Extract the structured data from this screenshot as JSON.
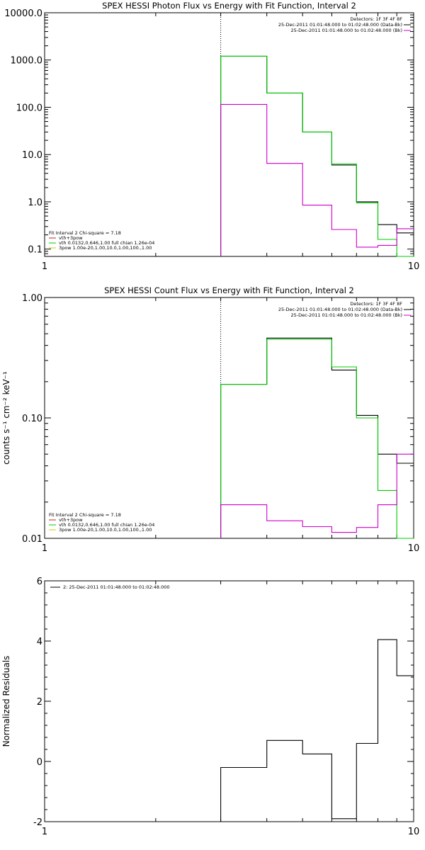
{
  "chart_data": [
    {
      "type": "line",
      "title": "SPEX HESSI Photon Flux vs Energy with Fit Function, Interval 2",
      "xlabel": "",
      "ylabel": "",
      "xscale": "log",
      "yscale": "log",
      "xlim": [
        1,
        10
      ],
      "ylim": [
        0.07,
        10000
      ],
      "x_ticks": [
        "1",
        "10"
      ],
      "y_ticks": [
        {
          "v": 0.1,
          "label": "0.1"
        },
        {
          "v": 1,
          "label": "1.0"
        },
        {
          "v": 10,
          "label": "10.0"
        },
        {
          "v": 100,
          "label": "100.0"
        },
        {
          "v": 1000,
          "label": "1000.0"
        },
        {
          "v": 10000,
          "label": "10000.0"
        }
      ],
      "marker_x": 3,
      "legend_top": {
        "lines": [
          {
            "text": "Detectors: 1F 3F 4F 8F",
            "color": ""
          },
          {
            "text": "25-Dec-2011 01:01:48.000 to 01:02:48.000 (Data-Bk)",
            "color": "#000000"
          },
          {
            "text": "25-Dec-2011 01:01:48.000 to 01:02:48.000 (Bk)",
            "color": "#cc00cc"
          }
        ]
      },
      "legend_bottom": {
        "lines": [
          {
            "text": "Fit Interval 2   Chi-square = 7.18",
            "color": ""
          },
          {
            "text": "vth+3pow",
            "color": "#cc2222"
          },
          {
            "text": "vth 0.0132,0.646,1.00  full chian 1.26e-04",
            "color": "#00cc00"
          },
          {
            "text": "3pow 1.00e-20,1.00,10.0,1.00,100.,1.00",
            "color": "#cccc00"
          }
        ]
      },
      "series": [
        {
          "color": "#000000",
          "values": [
            [
              3,
              1200
            ],
            [
              4,
              200
            ],
            [
              5,
              30
            ],
            [
              6,
              6
            ],
            [
              7,
              1.0
            ],
            [
              8,
              0.33
            ],
            [
              9,
              0.22
            ],
            [
              10,
              0.22
            ]
          ]
        },
        {
          "color": "#00cc00",
          "values": [
            [
              3,
              1200
            ],
            [
              4,
              200
            ],
            [
              5,
              30
            ],
            [
              6,
              6.3
            ],
            [
              7,
              0.95
            ],
            [
              8,
              0.16
            ],
            [
              9,
              0.065
            ],
            [
              10,
              0.065
            ]
          ]
        },
        {
          "color": "#cc00cc",
          "values": [
            [
              3,
              115
            ],
            [
              4,
              6.5
            ],
            [
              5,
              0.85
            ],
            [
              6,
              0.26
            ],
            [
              7,
              0.11
            ],
            [
              8,
              0.12
            ],
            [
              9,
              0.27
            ],
            [
              10,
              0.27
            ]
          ]
        }
      ]
    },
    {
      "type": "line",
      "title": "SPEX HESSI Count Flux vs Energy with Fit Function, Interval 2",
      "xlabel": "",
      "ylabel": "counts s⁻¹ cm⁻² keV⁻¹",
      "xscale": "log",
      "yscale": "log",
      "xlim": [
        1,
        10
      ],
      "ylim": [
        0.01,
        1.0
      ],
      "x_ticks": [
        "1",
        "10"
      ],
      "y_ticks": [
        {
          "v": 0.01,
          "label": "0.01"
        },
        {
          "v": 0.1,
          "label": "0.10"
        },
        {
          "v": 1,
          "label": "1.00"
        }
      ],
      "marker_x": 3,
      "legend_top": {
        "lines": [
          {
            "text": "Detectors: 1F 3F 4F 8F",
            "color": ""
          },
          {
            "text": "25-Dec-2011 01:01:48.000 to 01:02:48.000 (Data-Bk)",
            "color": "#000000"
          },
          {
            "text": "25-Dec-2011 01:01:48.000 to 01:02:48.000 (Bk)",
            "color": "#cc00cc"
          }
        ]
      },
      "legend_bottom": {
        "lines": [
          {
            "text": "Fit Interval 2   Chi-square = 7.18",
            "color": ""
          },
          {
            "text": "vth+3pow",
            "color": "#cc2222"
          },
          {
            "text": "vth 0.0132,0.646,1.00  full chian 1.26e-04",
            "color": "#00cc00"
          },
          {
            "text": "3pow 1.00e-20,1.00,10.0,1.00,100.,1.00",
            "color": "#cccc00"
          }
        ]
      },
      "series": [
        {
          "color": "#000000",
          "values": [
            [
              3,
              0.19
            ],
            [
              4,
              0.46
            ],
            [
              5,
              0.46
            ],
            [
              6,
              0.25
            ],
            [
              7,
              0.105
            ],
            [
              8,
              0.05
            ],
            [
              9,
              0.042
            ],
            [
              10,
              0.042
            ]
          ]
        },
        {
          "color": "#00cc00",
          "values": [
            [
              3,
              0.19
            ],
            [
              4,
              0.45
            ],
            [
              5,
              0.45
            ],
            [
              6,
              0.265
            ],
            [
              7,
              0.1
            ],
            [
              8,
              0.025
            ],
            [
              9,
              0.0095
            ],
            [
              10,
              0.0095
            ]
          ]
        },
        {
          "color": "#cc00cc",
          "values": [
            [
              3,
              0.019
            ],
            [
              4,
              0.014
            ],
            [
              5,
              0.0125
            ],
            [
              6,
              0.0112
            ],
            [
              7,
              0.0123
            ],
            [
              8,
              0.019
            ],
            [
              9,
              0.05
            ],
            [
              10,
              0.05
            ]
          ]
        }
      ]
    },
    {
      "type": "line",
      "title": "",
      "xlabel": "",
      "ylabel": "Normalized Residuals",
      "xscale": "log",
      "yscale": "linear",
      "xlim": [
        1,
        10
      ],
      "ylim": [
        -2,
        6
      ],
      "x_ticks": [
        "1",
        "10"
      ],
      "y_ticks": [
        {
          "v": -2,
          "label": "-2"
        },
        {
          "v": 0,
          "label": "0"
        },
        {
          "v": 2,
          "label": "2"
        },
        {
          "v": 4,
          "label": "4"
        },
        {
          "v": 6,
          "label": "6"
        }
      ],
      "legend_top": {
        "lines": [
          {
            "text": "2: 25-Dec-2011 01:01:48.000 to 01:02:48.000",
            "color": "#000000"
          }
        ]
      },
      "series": [
        {
          "color": "#000000",
          "values": [
            [
              3,
              -0.2
            ],
            [
              4,
              0.7
            ],
            [
              5,
              0.25
            ],
            [
              6,
              -1.9
            ],
            [
              7,
              0.6
            ],
            [
              8,
              4.05
            ],
            [
              9,
              2.85
            ],
            [
              10,
              2.85
            ]
          ]
        }
      ]
    }
  ]
}
